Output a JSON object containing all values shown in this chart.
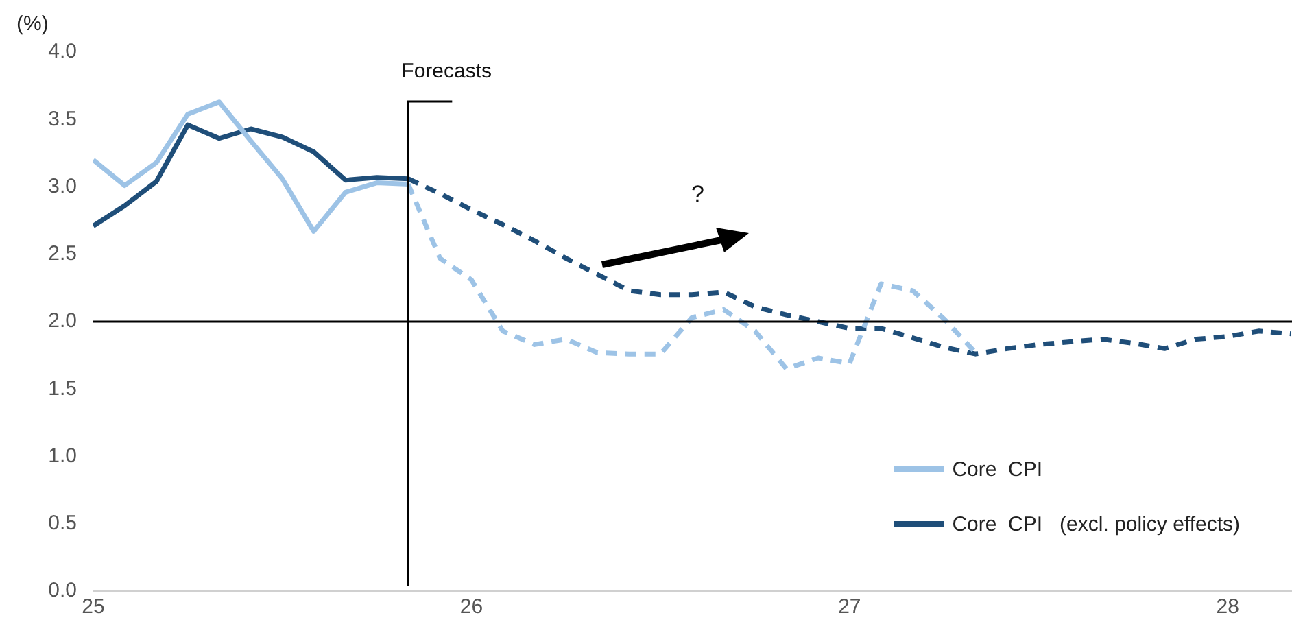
{
  "chart_data": {
    "type": "line",
    "ylabel": "(%)",
    "xlim": [
      25,
      28.17
    ],
    "xticks": [
      25,
      26,
      27,
      28
    ],
    "ylim": [
      0,
      4
    ],
    "yticks": [
      {
        "value": 0,
        "label": "0.0"
      },
      {
        "value": 0.5,
        "label": "0.5"
      },
      {
        "value": 1,
        "label": "1.0"
      },
      {
        "value": 1.5,
        "label": "1.5"
      },
      {
        "value": 2,
        "label": "2.0"
      },
      {
        "value": 2.5,
        "label": "2.5"
      },
      {
        "value": 3,
        "label": "3.0"
      },
      {
        "value": 3.5,
        "label": "3.5"
      },
      {
        "value": 4,
        "label": "4.0"
      }
    ],
    "grid": false,
    "legend": "bottom right",
    "marker": "none",
    "series": [
      {
        "name": "Core  CPI",
        "color": "#9dc3e6",
        "line_style": "solid",
        "x": [
          25,
          25.083,
          25.167,
          25.25,
          25.333,
          25.417,
          25.5,
          25.583,
          25.667,
          25.75,
          25.833
        ],
        "values": [
          3.2,
          3.01,
          3.18,
          3.54,
          3.63,
          3.34,
          3.06,
          2.67,
          2.96,
          3.03,
          3.02
        ]
      },
      {
        "name": "Core  CPI   (excl. policy effects)",
        "color": "#1f4e79",
        "line_style": "solid",
        "x": [
          25,
          25.083,
          25.167,
          25.25,
          25.333,
          25.417,
          25.5,
          25.583,
          25.667,
          25.75,
          25.833
        ],
        "values": [
          2.71,
          2.86,
          3.04,
          3.46,
          3.36,
          3.43,
          3.37,
          3.26,
          3.05,
          3.07,
          3.06
        ]
      },
      {
        "color": "#9dc3e6",
        "line_style": "dashed",
        "x": [
          25.833,
          25.917,
          26,
          26.083,
          26.167,
          26.25,
          26.333,
          26.417,
          26.5,
          26.583,
          26.667,
          26.75,
          26.833,
          26.917,
          27,
          27.083,
          27.167,
          27.25,
          27.333
        ],
        "values": [
          3.02,
          2.47,
          2.31,
          1.93,
          1.83,
          1.87,
          1.77,
          1.76,
          1.76,
          2.03,
          2.09,
          1.93,
          1.65,
          1.73,
          1.69,
          2.28,
          2.23,
          2.02,
          1.77
        ]
      },
      {
        "color": "#1f4e79",
        "line_style": "dashed",
        "x": [
          25.833,
          25.917,
          26,
          26.083,
          26.167,
          26.25,
          26.333,
          26.417,
          26.5,
          26.583,
          26.667,
          26.75,
          26.833,
          26.917,
          27,
          27.083,
          27.167,
          27.25,
          27.333,
          27.417,
          27.5,
          27.583,
          27.667,
          27.75,
          27.833,
          27.917,
          28,
          28.083,
          28.167
        ],
        "values": [
          3.06,
          2.95,
          2.83,
          2.72,
          2.6,
          2.47,
          2.35,
          2.23,
          2.2,
          2.2,
          2.22,
          2.11,
          2.05,
          2.0,
          1.95,
          1.95,
          1.88,
          1.81,
          1.76,
          1.8,
          1.83,
          1.85,
          1.87,
          1.84,
          1.8,
          1.87,
          1.89,
          1.93,
          1.91
        ]
      }
    ],
    "ref_lines": [
      {
        "axis": "y",
        "value": 2,
        "color": "#000000"
      },
      {
        "axis": "x",
        "value": 25.833,
        "label": "Forecasts",
        "color": "#000000"
      }
    ],
    "annotations": [
      "?"
    ]
  }
}
